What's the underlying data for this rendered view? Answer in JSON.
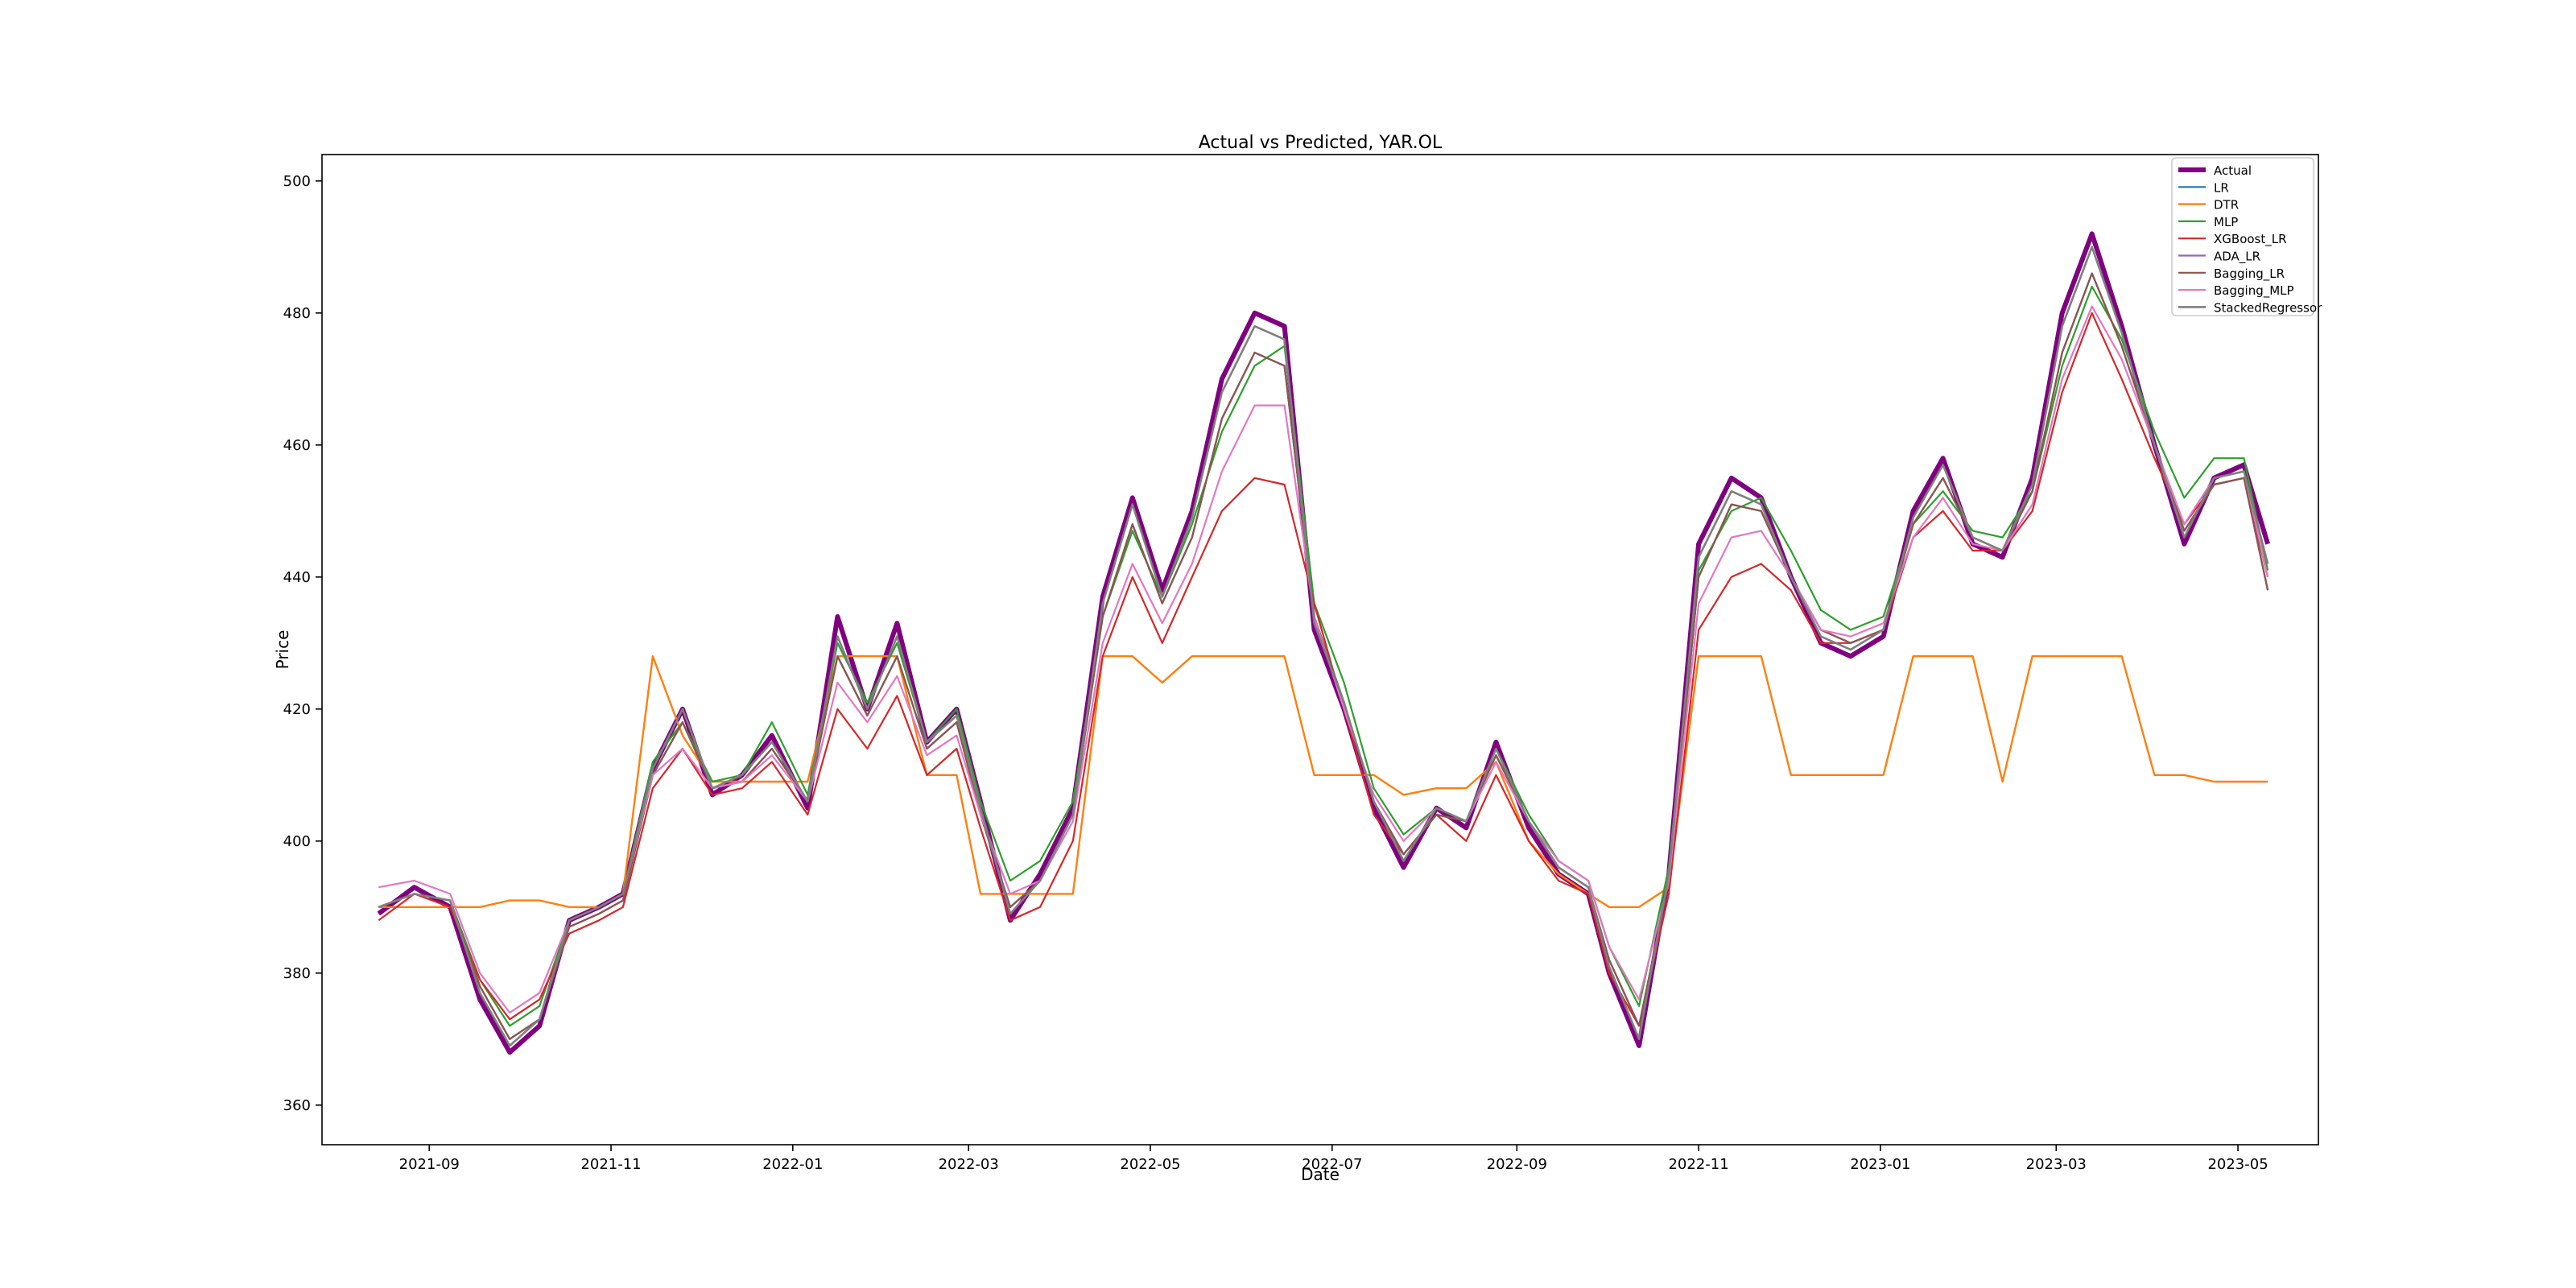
{
  "chart_data": {
    "type": "line",
    "title": "Actual vs Predicted, YAR.OL",
    "xlabel": "Date",
    "ylabel": "Price",
    "xlim": [
      "2021-07-27",
      "2023-05-28"
    ],
    "ylim": [
      354,
      504
    ],
    "x_ticks": [
      "2021-09",
      "2021-11",
      "2022-01",
      "2022-03",
      "2022-05",
      "2022-07",
      "2022-09",
      "2022-11",
      "2023-01",
      "2023-03",
      "2023-05"
    ],
    "y_ticks": [
      360,
      380,
      400,
      420,
      440,
      460,
      480,
      500
    ],
    "grid": false,
    "legend_position": "top-right",
    "dates": [
      "2021-08-15",
      "2021-08-27",
      "2021-09-08",
      "2021-09-18",
      "2021-09-28",
      "2021-10-08",
      "2021-10-18",
      "2021-10-28",
      "2021-11-05",
      "2021-11-15",
      "2021-11-25",
      "2021-12-05",
      "2021-12-15",
      "2021-12-25",
      "2022-01-06",
      "2022-01-16",
      "2022-01-26",
      "2022-02-05",
      "2022-02-15",
      "2022-02-25",
      "2022-03-05",
      "2022-03-15",
      "2022-03-25",
      "2022-04-05",
      "2022-04-15",
      "2022-04-25",
      "2022-05-05",
      "2022-05-15",
      "2022-05-25",
      "2022-06-05",
      "2022-06-15",
      "2022-06-25",
      "2022-07-05",
      "2022-07-15",
      "2022-07-25",
      "2022-08-05",
      "2022-08-15",
      "2022-08-25",
      "2022-09-05",
      "2022-09-15",
      "2022-09-25",
      "2022-10-02",
      "2022-10-12",
      "2022-10-22",
      "2022-11-01",
      "2022-11-12",
      "2022-11-22",
      "2022-12-02",
      "2022-12-12",
      "2022-12-22",
      "2023-01-02",
      "2023-01-12",
      "2023-01-22",
      "2023-02-01",
      "2023-02-11",
      "2023-02-21",
      "2023-03-03",
      "2023-03-13",
      "2023-03-23",
      "2023-04-03",
      "2023-04-13",
      "2023-04-23",
      "2023-05-03",
      "2023-05-11"
    ],
    "series": [
      {
        "name": "Actual",
        "color": "#800080",
        "width": 6,
        "values": [
          389,
          393,
          390,
          376,
          368,
          372,
          388,
          390,
          392,
          411,
          420,
          407,
          410,
          416,
          405,
          434,
          420,
          433,
          415,
          420,
          406,
          388,
          395,
          405,
          437,
          452,
          438,
          450,
          470,
          480,
          478,
          432,
          420,
          405,
          396,
          405,
          402,
          415,
          402,
          395,
          392,
          380,
          369,
          395,
          445,
          455,
          452,
          440,
          430,
          428,
          431,
          450,
          458,
          445,
          443,
          455,
          480,
          492,
          478,
          460,
          445,
          455,
          457,
          445
        ]
      },
      {
        "name": "LR",
        "color": "#1f77b4",
        "width": 2.2,
        "values": [
          390,
          392,
          391,
          378,
          370,
          373,
          387,
          389,
          391,
          410,
          418,
          408,
          409,
          414,
          406,
          428,
          419,
          428,
          414,
          418,
          404,
          390,
          394,
          404,
          434,
          448,
          436,
          446,
          464,
          474,
          472,
          434,
          421,
          406,
          398,
          404,
          403,
          413,
          403,
          396,
          393,
          382,
          372,
          394,
          440,
          451,
          450,
          440,
          432,
          430,
          432,
          448,
          455,
          446,
          444,
          453,
          474,
          486,
          475,
          460,
          447,
          454,
          455,
          438
        ]
      },
      {
        "name": "DTR",
        "color": "#ff7f0e",
        "width": 2.4,
        "values": [
          390,
          390,
          390,
          390,
          391,
          391,
          390,
          390,
          392,
          428,
          416,
          409,
          409,
          409,
          409,
          428,
          428,
          428,
          410,
          410,
          392,
          392,
          392,
          392,
          428,
          428,
          424,
          428,
          428,
          428,
          428,
          410,
          410,
          410,
          407,
          408,
          408,
          412,
          400,
          395,
          392,
          390,
          390,
          393,
          428,
          428,
          428,
          410,
          410,
          410,
          410,
          428,
          428,
          428,
          409,
          428,
          428,
          428,
          428,
          410,
          410,
          409,
          409,
          409
        ]
      },
      {
        "name": "MLP",
        "color": "#2ca02c",
        "width": 2.2,
        "values": [
          390,
          392,
          391,
          379,
          372,
          375,
          388,
          390,
          392,
          412,
          418,
          409,
          410,
          418,
          407,
          430,
          421,
          430,
          415,
          420,
          406,
          394,
          397,
          406,
          434,
          447,
          437,
          448,
          462,
          472,
          475,
          436,
          424,
          408,
          401,
          405,
          403,
          414,
          404,
          397,
          394,
          384,
          375,
          396,
          441,
          450,
          452,
          444,
          435,
          432,
          434,
          448,
          453,
          447,
          446,
          453,
          472,
          484,
          476,
          462,
          452,
          458,
          458,
          441
        ]
      },
      {
        "name": "XGBoost_LR",
        "color": "#d62728",
        "width": 2.2,
        "values": [
          388,
          392,
          390,
          379,
          373,
          376,
          386,
          388,
          390,
          408,
          414,
          407,
          408,
          412,
          404,
          420,
          414,
          422,
          410,
          414,
          402,
          388,
          390,
          400,
          428,
          440,
          430,
          440,
          450,
          455,
          454,
          436,
          420,
          404,
          398,
          404,
          400,
          410,
          400,
          394,
          392,
          380,
          372,
          392,
          432,
          440,
          442,
          438,
          430,
          430,
          432,
          446,
          450,
          444,
          444,
          450,
          468,
          480,
          470,
          458,
          448,
          454,
          455,
          440
        ]
      },
      {
        "name": "ADA_LR",
        "color": "#9467bd",
        "width": 2.2,
        "values": [
          390,
          392,
          391,
          378,
          370,
          373,
          387,
          389,
          391,
          410,
          418,
          408,
          409,
          414,
          406,
          428,
          419,
          428,
          414,
          418,
          404,
          390,
          394,
          404,
          434,
          448,
          436,
          446,
          464,
          474,
          472,
          434,
          421,
          406,
          398,
          404,
          403,
          413,
          403,
          396,
          393,
          382,
          372,
          394,
          440,
          451,
          450,
          440,
          432,
          430,
          432,
          448,
          455,
          446,
          444,
          453,
          474,
          486,
          475,
          460,
          447,
          454,
          455,
          438
        ]
      },
      {
        "name": "Bagging_LR",
        "color": "#8c564b",
        "width": 2.2,
        "values": [
          390,
          392,
          391,
          378,
          370,
          373,
          387,
          389,
          391,
          410,
          418,
          408,
          409,
          414,
          406,
          428,
          419,
          428,
          414,
          418,
          404,
          390,
          394,
          404,
          434,
          448,
          436,
          446,
          464,
          474,
          472,
          434,
          421,
          406,
          398,
          404,
          403,
          413,
          403,
          396,
          393,
          382,
          372,
          394,
          440,
          451,
          450,
          440,
          432,
          430,
          432,
          448,
          455,
          446,
          444,
          453,
          474,
          486,
          475,
          460,
          447,
          454,
          455,
          438
        ]
      },
      {
        "name": "Bagging_MLP",
        "color": "#e377c2",
        "width": 2.2,
        "values": [
          393,
          394,
          392,
          380,
          374,
          377,
          388,
          390,
          392,
          410,
          414,
          408,
          409,
          413,
          406,
          424,
          418,
          425,
          413,
          416,
          404,
          392,
          394,
          403,
          430,
          442,
          433,
          442,
          456,
          466,
          466,
          434,
          420,
          407,
          400,
          405,
          403,
          412,
          403,
          397,
          394,
          384,
          376,
          394,
          436,
          446,
          447,
          440,
          432,
          431,
          433,
          446,
          452,
          445,
          444,
          451,
          470,
          481,
          473,
          460,
          448,
          455,
          456,
          440
        ]
      },
      {
        "name": "StackedRegressor",
        "color": "#7f7f7f",
        "width": 2.6,
        "values": [
          390,
          392,
          391,
          377,
          369,
          373,
          388,
          390,
          392,
          411,
          420,
          408,
          410,
          415,
          406,
          431,
          420,
          431,
          415,
          419,
          405,
          389,
          394,
          404,
          436,
          451,
          437,
          449,
          468,
          478,
          476,
          433,
          421,
          406,
          397,
          405,
          403,
          414,
          403,
          396,
          393,
          381,
          370,
          395,
          443,
          453,
          451,
          440,
          431,
          429,
          432,
          449,
          457,
          446,
          444,
          454,
          478,
          490,
          477,
          460,
          446,
          455,
          456,
          442
        ]
      }
    ]
  }
}
